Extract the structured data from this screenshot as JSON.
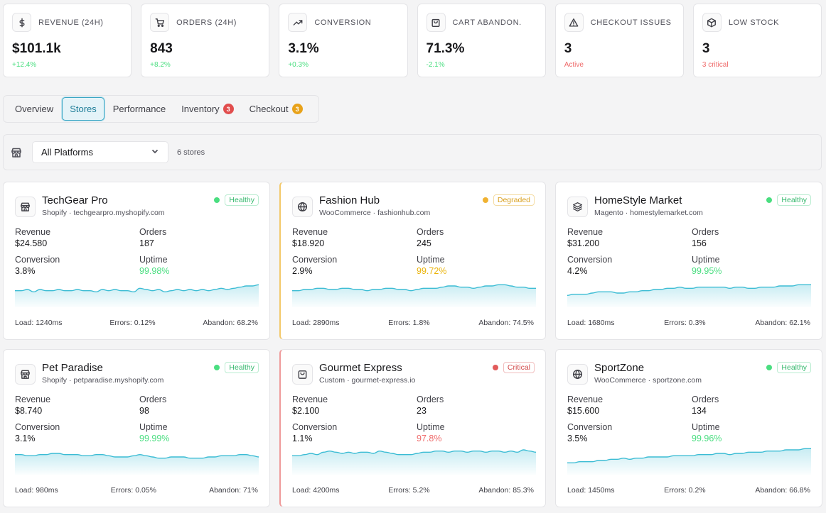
{
  "kpis": [
    {
      "icon": "dollar-icon",
      "label": "REVENUE (24H)",
      "value": "$101.1k",
      "sub": "+12.4%",
      "sub_tone": "pos"
    },
    {
      "icon": "cart-icon",
      "label": "ORDERS (24H)",
      "value": "843",
      "sub": "+8.2%",
      "sub_tone": "pos"
    },
    {
      "icon": "trending-up-icon",
      "label": "CONVERSION",
      "value": "3.1%",
      "sub": "+0.3%",
      "sub_tone": "pos"
    },
    {
      "icon": "shopping-bag-icon",
      "label": "CART ABANDON.",
      "value": "71.3%",
      "sub": "-2.1%",
      "sub_tone": "neg"
    },
    {
      "icon": "alert-triangle-icon",
      "label": "CHECKOUT ISSUES",
      "value": "3",
      "sub": "Active",
      "sub_tone": "red"
    },
    {
      "icon": "package-icon",
      "label": "LOW STOCK",
      "value": "3",
      "sub": "3 critical",
      "sub_tone": "red"
    }
  ],
  "tabs": [
    {
      "label": "Overview",
      "active": false,
      "badge": null
    },
    {
      "label": "Stores",
      "active": true,
      "badge": null
    },
    {
      "label": "Performance",
      "active": false,
      "badge": null
    },
    {
      "label": "Inventory",
      "active": false,
      "badge": "3",
      "badge_color": "red"
    },
    {
      "label": "Checkout",
      "active": false,
      "badge": "3",
      "badge_color": "amber"
    }
  ],
  "filter": {
    "platform": "All Platforms",
    "count": "6 stores"
  },
  "colors": {
    "accent": "#3aa6c4",
    "sparkline": "#3bbcd4",
    "healthy": "#4ade80",
    "degraded": "#f0b232",
    "critical": "#e25b5b"
  },
  "stores": [
    {
      "name": "TechGear Pro",
      "meta": "Shopify · techgearpro.myshopify.com",
      "icon": "store-icon",
      "status": "Healthy",
      "tone": "healthy",
      "revenue_label": "Revenue",
      "revenue": "$24.580",
      "orders_label": "Orders",
      "orders": "187",
      "conversion_label": "Conversion",
      "conversion": "3.8%",
      "uptime_label": "Uptime",
      "uptime": "99.98%",
      "load": "Load: 1240ms",
      "errors": "Errors: 0.12%",
      "abandon": "Abandon: 68.2%",
      "trend": [
        14,
        14,
        15,
        13,
        15,
        14,
        14,
        15,
        14,
        14,
        15,
        14,
        14,
        13,
        15,
        14,
        15,
        14,
        14,
        13,
        16,
        15,
        14,
        15,
        13,
        14,
        15,
        14,
        15,
        14,
        15,
        14,
        15,
        16,
        15,
        16,
        17,
        18,
        18,
        19
      ]
    },
    {
      "name": "Fashion Hub",
      "meta": "WooCommerce · fashionhub.com",
      "icon": "globe-icon",
      "status": "Degraded",
      "tone": "degraded",
      "revenue_label": "Revenue",
      "revenue": "$18.920",
      "orders_label": "Orders",
      "orders": "245",
      "conversion_label": "Conversion",
      "conversion": "2.9%",
      "uptime_label": "Uptime",
      "uptime": "99.72%",
      "load": "Load: 2890ms",
      "errors": "Errors: 1.8%",
      "abandon": "Abandon: 74.5%",
      "trend": [
        14,
        14,
        15,
        15,
        16,
        16,
        15,
        15,
        16,
        16,
        15,
        15,
        14,
        15,
        15,
        16,
        16,
        15,
        15,
        14,
        15,
        16,
        16,
        16,
        17,
        18,
        18,
        17,
        17,
        16,
        17,
        18,
        18,
        19,
        19,
        18,
        17,
        17,
        16,
        16
      ]
    },
    {
      "name": "HomeStyle Market",
      "meta": "Magento · homestylemarket.com",
      "icon": "layers-icon",
      "status": "Healthy",
      "tone": "healthy",
      "revenue_label": "Revenue",
      "revenue": "$31.200",
      "orders_label": "Orders",
      "orders": "156",
      "conversion_label": "Conversion",
      "conversion": "4.2%",
      "uptime_label": "Uptime",
      "uptime": "99.95%",
      "load": "Load: 1680ms",
      "errors": "Errors: 0.3%",
      "abandon": "Abandon: 62.1%",
      "trend": [
        10,
        11,
        11,
        11,
        12,
        13,
        13,
        13,
        12,
        12,
        13,
        13,
        14,
        14,
        15,
        15,
        16,
        16,
        17,
        16,
        16,
        17,
        17,
        17,
        17,
        17,
        16,
        17,
        17,
        16,
        16,
        17,
        17,
        17,
        18,
        18,
        18,
        19,
        19,
        19
      ]
    },
    {
      "name": "Pet Paradise",
      "meta": "Shopify · petparadise.myshopify.com",
      "icon": "store-icon",
      "status": "Healthy",
      "tone": "healthy",
      "revenue_label": "Revenue",
      "revenue": "$8.740",
      "orders_label": "Orders",
      "orders": "98",
      "conversion_label": "Conversion",
      "conversion": "3.1%",
      "uptime_label": "Uptime",
      "uptime": "99.99%",
      "load": "Load: 980ms",
      "errors": "Errors: 0.05%",
      "abandon": "Abandon: 71%",
      "trend": [
        17,
        17,
        16,
        16,
        17,
        17,
        18,
        18,
        17,
        17,
        17,
        16,
        16,
        17,
        17,
        16,
        15,
        15,
        15,
        16,
        17,
        16,
        15,
        14,
        14,
        15,
        15,
        15,
        14,
        14,
        14,
        15,
        15,
        16,
        16,
        16,
        17,
        17,
        16,
        15
      ]
    },
    {
      "name": "Gourmet Express",
      "meta": "Custom · gourmet-express.io",
      "icon": "shopping-bag-icon",
      "status": "Critical",
      "tone": "critical",
      "revenue_label": "Revenue",
      "revenue": "$2.100",
      "orders_label": "Orders",
      "orders": "23",
      "conversion_label": "Conversion",
      "conversion": "1.1%",
      "uptime_label": "Uptime",
      "uptime": "97.8%",
      "load": "Load: 4200ms",
      "errors": "Errors: 5.2%",
      "abandon": "Abandon: 85.3%",
      "trend": [
        16,
        16,
        17,
        18,
        17,
        19,
        20,
        19,
        18,
        19,
        18,
        19,
        19,
        18,
        20,
        19,
        18,
        17,
        17,
        17,
        18,
        19,
        19,
        20,
        20,
        19,
        20,
        20,
        19,
        20,
        20,
        19,
        20,
        20,
        19,
        20,
        19,
        21,
        20,
        19
      ]
    },
    {
      "name": "SportZone",
      "meta": "WooCommerce · sportzone.com",
      "icon": "globe-icon",
      "status": "Healthy",
      "tone": "healthy",
      "revenue_label": "Revenue",
      "revenue": "$15.600",
      "orders_label": "Orders",
      "orders": "134",
      "conversion_label": "Conversion",
      "conversion": "3.5%",
      "uptime_label": "Uptime",
      "uptime": "99.96%",
      "load": "Load: 1450ms",
      "errors": "Errors: 0.2%",
      "abandon": "Abandon: 66.8%",
      "trend": [
        10,
        10,
        11,
        11,
        11,
        12,
        12,
        13,
        13,
        14,
        13,
        14,
        14,
        15,
        15,
        15,
        15,
        16,
        16,
        16,
        16,
        17,
        17,
        17,
        18,
        18,
        17,
        18,
        18,
        19,
        19,
        19,
        20,
        20,
        20,
        21,
        21,
        21,
        22,
        22
      ]
    }
  ]
}
